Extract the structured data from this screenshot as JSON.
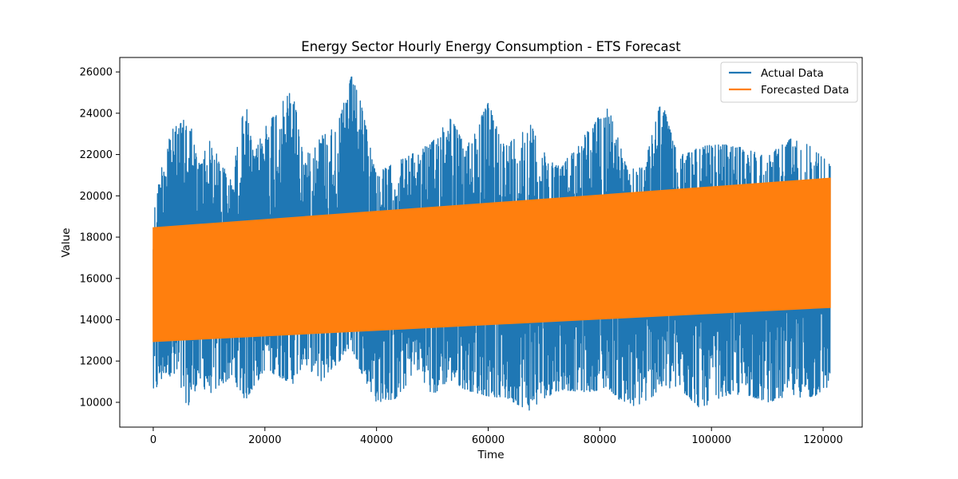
{
  "chart_data": {
    "type": "line",
    "title": "Energy Sector Hourly Energy Consumption - ETS Forecast",
    "xlabel": "Time",
    "ylabel": "Value",
    "xlim": [
      -6000,
      127000
    ],
    "ylim": [
      8800,
      26700
    ],
    "x_ticks": [
      0,
      20000,
      40000,
      60000,
      80000,
      100000,
      120000
    ],
    "x_tick_labels": [
      "0",
      "20000",
      "40000",
      "60000",
      "80000",
      "100000",
      "120000"
    ],
    "y_ticks": [
      10000,
      12000,
      14000,
      16000,
      18000,
      20000,
      22000,
      24000,
      26000
    ],
    "y_tick_labels": [
      "10000",
      "12000",
      "14000",
      "16000",
      "18000",
      "20000",
      "22000",
      "24000",
      "26000"
    ],
    "grid": false,
    "legend_position": "top-right",
    "series": [
      {
        "name": "Actual Data",
        "color": "#1f77b4",
        "x_range": [
          0,
          121272
        ],
        "x": [
          0,
          2500,
          6500,
          8000,
          10000,
          14000,
          16500,
          18000,
          20000,
          25000,
          27000,
          30000,
          33000,
          35500,
          37000,
          40000,
          44000,
          47000,
          50000,
          53000,
          56000,
          60000,
          63000,
          67500,
          70000,
          73000,
          78000,
          81500,
          85000,
          88000,
          91000,
          94000,
          98000,
          102000,
          106000,
          110000,
          114000,
          118000,
          121272
        ],
        "upper_envelope": [
          19100,
          23000,
          23900,
          21500,
          22700,
          20700,
          24700,
          21900,
          23400,
          25200,
          21800,
          22900,
          23400,
          25800,
          24700,
          21100,
          21700,
          22100,
          22600,
          24000,
          22300,
          24500,
          22400,
          23500,
          22100,
          21400,
          23200,
          24400,
          21200,
          21500,
          24700,
          21900,
          22400,
          22500,
          22300,
          21900,
          22800,
          22400,
          21500
        ],
        "lower_envelope": [
          10300,
          11500,
          9700,
          11000,
          10400,
          11200,
          10100,
          10700,
          11600,
          10900,
          11900,
          11000,
          11900,
          12600,
          11600,
          10000,
          10200,
          11700,
          10300,
          11100,
          10600,
          10300,
          10200,
          9600,
          10200,
          10600,
          10500,
          10700,
          9700,
          10000,
          10600,
          10700,
          9700,
          10300,
          10400,
          10000,
          10300,
          10200,
          10800
        ]
      },
      {
        "name": "Forecasted Data",
        "color": "#ff7f0e",
        "x_range": [
          0,
          121272
        ],
        "upper": [
          18450,
          20850
        ],
        "lower": [
          12950,
          14600
        ]
      }
    ]
  }
}
